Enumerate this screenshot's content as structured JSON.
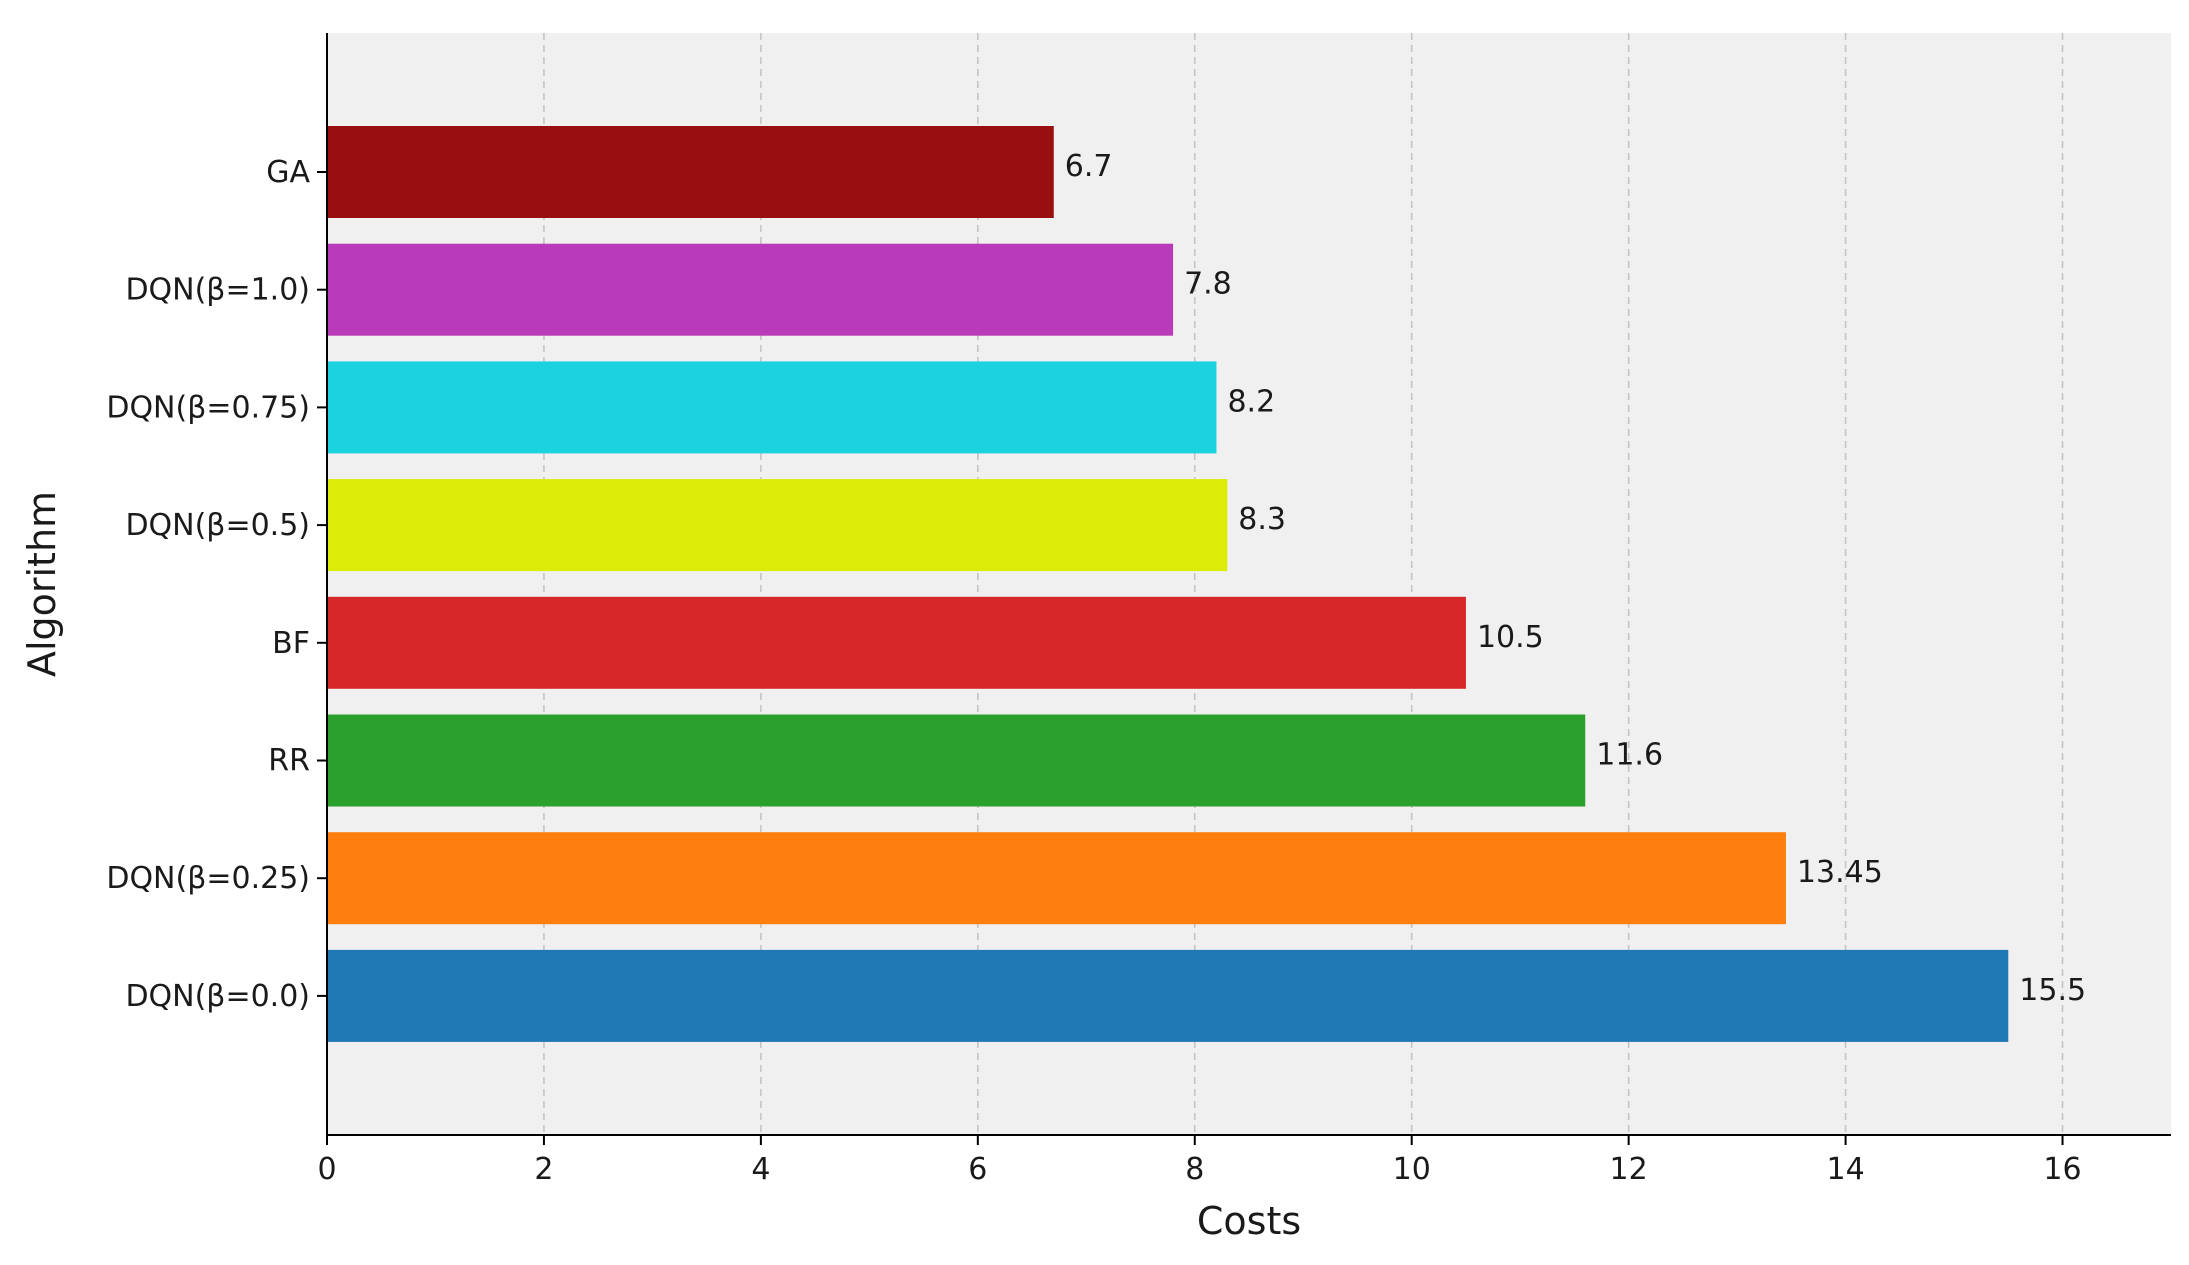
{
  "chart_data": {
    "type": "bar",
    "orientation": "horizontal",
    "title": "",
    "xlabel": "Costs",
    "ylabel": "Algorithm",
    "xlim": [
      0,
      17
    ],
    "x_ticks": [
      0,
      2,
      4,
      6,
      8,
      10,
      12,
      14,
      16
    ],
    "grid": "x dashed",
    "categories": [
      "GA",
      "DQN(β=1.0)",
      "DQN(β=0.75)",
      "DQN(β=0.5)",
      "BF",
      "RR",
      "DQN(β=0.25)",
      "DQN(β=0.0)"
    ],
    "values": [
      6.7,
      7.8,
      8.2,
      8.3,
      10.5,
      11.6,
      13.45,
      15.5
    ],
    "value_labels": [
      "6.7",
      "7.8",
      "8.2",
      "8.3",
      "10.5",
      "11.6",
      "13.45",
      "15.5"
    ],
    "colors": [
      "#990f0f",
      "#ba3bba",
      "#1bd3df",
      "#dcec08",
      "#d62828",
      "#2ca02c",
      "#ff7f0e",
      "#1f77b4"
    ],
    "background_color": "#f0f0f0"
  }
}
